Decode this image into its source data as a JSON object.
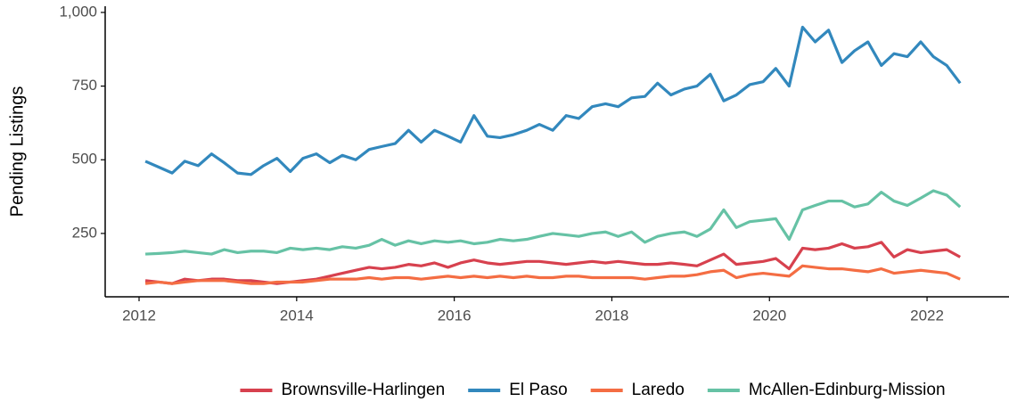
{
  "chart_data": {
    "type": "line",
    "y_label": "Pending Listings",
    "x": [
      2012.08,
      2012.25,
      2012.42,
      2012.58,
      2012.75,
      2012.92,
      2013.08,
      2013.25,
      2013.42,
      2013.58,
      2013.75,
      2013.92,
      2014.08,
      2014.25,
      2014.42,
      2014.58,
      2014.75,
      2014.92,
      2015.08,
      2015.25,
      2015.42,
      2015.58,
      2015.75,
      2015.92,
      2016.08,
      2016.25,
      2016.42,
      2016.58,
      2016.75,
      2016.92,
      2017.08,
      2017.25,
      2017.42,
      2017.58,
      2017.75,
      2017.92,
      2018.08,
      2018.25,
      2018.42,
      2018.58,
      2018.75,
      2018.92,
      2019.08,
      2019.25,
      2019.42,
      2019.58,
      2019.75,
      2019.92,
      2020.08,
      2020.25,
      2020.42,
      2020.58,
      2020.75,
      2020.92,
      2021.08,
      2021.25,
      2021.42,
      2021.58,
      2021.75,
      2021.92,
      2022.08,
      2022.25,
      2022.42
    ],
    "series": [
      {
        "name": "Brownsville-Harlingen",
        "color": "#d7414e",
        "values": [
          90,
          85,
          80,
          95,
          90,
          95,
          95,
          90,
          90,
          85,
          80,
          85,
          90,
          95,
          105,
          115,
          125,
          135,
          130,
          135,
          145,
          140,
          150,
          135,
          150,
          160,
          150,
          145,
          150,
          155,
          155,
          150,
          145,
          150,
          155,
          150,
          155,
          150,
          145,
          145,
          150,
          145,
          140,
          160,
          180,
          145,
          150,
          155,
          165,
          130,
          200,
          195,
          200,
          215,
          200,
          205,
          220,
          170,
          195,
          185,
          190,
          195,
          170
        ]
      },
      {
        "name": "El Paso",
        "color": "#3288bd",
        "values": [
          495,
          475,
          455,
          495,
          480,
          520,
          490,
          455,
          450,
          480,
          505,
          460,
          505,
          520,
          490,
          515,
          500,
          535,
          545,
          555,
          600,
          560,
          600,
          580,
          560,
          650,
          580,
          575,
          585,
          600,
          620,
          600,
          650,
          640,
          680,
          690,
          680,
          710,
          715,
          760,
          720,
          740,
          750,
          790,
          700,
          720,
          755,
          765,
          810,
          750,
          950,
          900,
          940,
          830,
          870,
          900,
          820,
          860,
          850,
          900,
          850,
          820,
          760
        ]
      },
      {
        "name": "Laredo",
        "color": "#f46d43",
        "values": [
          80,
          85,
          80,
          85,
          90,
          90,
          90,
          85,
          80,
          80,
          85,
          85,
          85,
          90,
          95,
          95,
          95,
          100,
          95,
          100,
          100,
          95,
          100,
          105,
          100,
          105,
          100,
          105,
          100,
          105,
          100,
          100,
          105,
          105,
          100,
          100,
          100,
          100,
          95,
          100,
          105,
          105,
          110,
          120,
          125,
          100,
          110,
          115,
          110,
          105,
          140,
          135,
          130,
          130,
          125,
          120,
          130,
          115,
          120,
          125,
          120,
          115,
          95
        ]
      },
      {
        "name": "McAllen-Edinburg-Mission",
        "color": "#66c2a5",
        "values": [
          180,
          182,
          185,
          190,
          185,
          180,
          195,
          185,
          190,
          190,
          185,
          200,
          195,
          200,
          195,
          205,
          200,
          210,
          230,
          210,
          225,
          215,
          225,
          220,
          225,
          215,
          220,
          230,
          225,
          230,
          240,
          250,
          245,
          240,
          250,
          255,
          240,
          255,
          220,
          240,
          250,
          255,
          240,
          265,
          330,
          270,
          290,
          295,
          300,
          230,
          330,
          345,
          360,
          360,
          340,
          350,
          390,
          360,
          345,
          370,
          395,
          380,
          340
        ]
      }
    ],
    "xlim": [
      2011.57,
      2023.04
    ],
    "xticks": [
      2012,
      2014,
      2016,
      2018,
      2020,
      2022
    ],
    "ylim": [
      35,
      1021
    ],
    "yticks": [
      250,
      500,
      750,
      {
        "value": 1000,
        "label": "1,000"
      }
    ],
    "legend": "bottom"
  }
}
